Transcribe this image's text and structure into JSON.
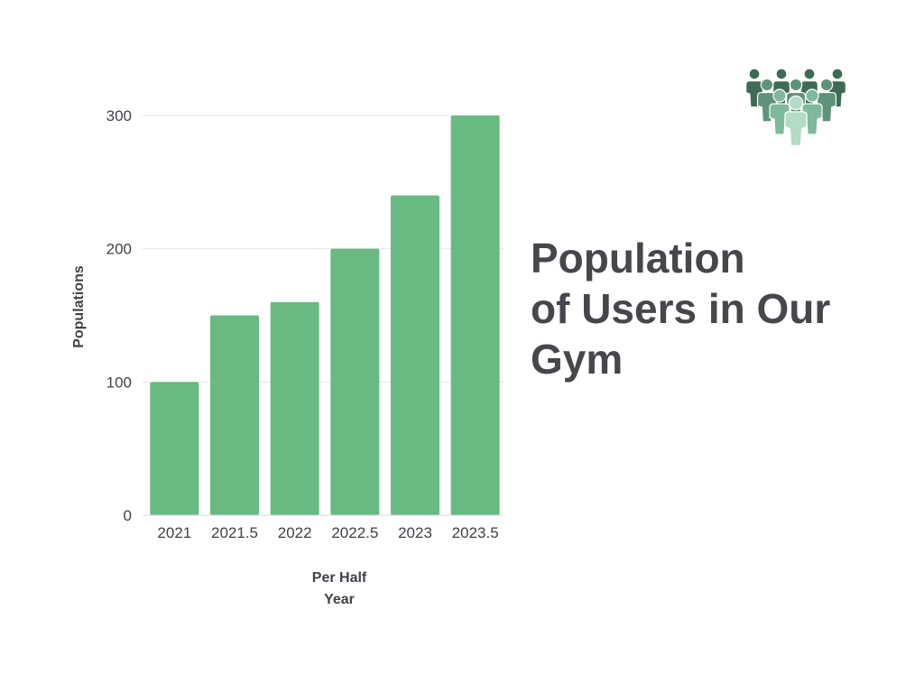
{
  "title_lines": [
    "Population",
    "of Users in Our",
    "Gym"
  ],
  "colors": {
    "bar": "#69b983",
    "grid": "#e6e6e6",
    "text": "#444049",
    "icon_dark": "#3f6b56",
    "icon_mid": "#5f927a",
    "icon_light": "#7db99a",
    "icon_pale": "#b4dbc5"
  },
  "icon": "people-group-icon",
  "chart_data": {
    "type": "bar",
    "categories": [
      "2021",
      "2021.5",
      "2022",
      "2022.5",
      "2023",
      "2023.5"
    ],
    "values": [
      100,
      150,
      160,
      200,
      240,
      300
    ],
    "xlabel_lines": [
      "Per Half",
      "Year"
    ],
    "ylabel": "Populations",
    "ylim": [
      0,
      300
    ],
    "yticks": [
      0,
      100,
      200,
      300
    ],
    "grid": true,
    "legend": "none"
  }
}
